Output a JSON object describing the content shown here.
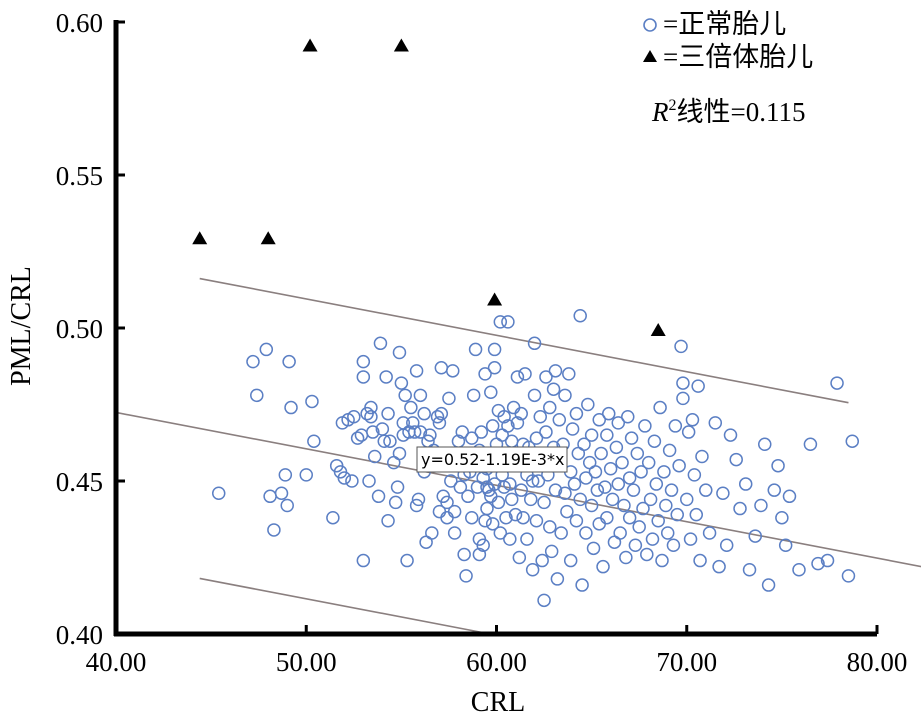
{
  "chart_data": {
    "type": "scatter",
    "xlabel": "CRL",
    "ylabel": "PML/CRL",
    "xlim": [
      40,
      80
    ],
    "ylim": [
      0.4,
      0.6
    ],
    "x_ticks": [
      "40.00",
      "50.00",
      "60.00",
      "70.00",
      "80.00"
    ],
    "y_ticks": [
      "0.40",
      "0.45",
      "0.50",
      "0.55",
      "0.60"
    ],
    "legend": {
      "placement": "top-right",
      "normal_label": "=正常胎儿",
      "trisomy_label": "=三倍体胎儿",
      "r2_prefix": "R",
      "r2_sup": "2",
      "r2_label": "线性=0.115"
    },
    "regression": {
      "equation": "y=0.52-1.19E-3*x",
      "intercept": 0.52,
      "slope": -0.00119,
      "band_offset": 0.049
    },
    "colors": {
      "normal": "#5b7fc4",
      "trisomy": "#000000",
      "line": "#8a7f7f"
    },
    "series": [
      {
        "name": "正常胎儿",
        "marker": "open-circle",
        "points": [
          [
            45.4,
            0.446
          ],
          [
            47.2,
            0.489
          ],
          [
            47.4,
            0.478
          ],
          [
            47.9,
            0.493
          ],
          [
            48.1,
            0.445
          ],
          [
            48.3,
            0.434
          ],
          [
            48.7,
            0.446
          ],
          [
            48.9,
            0.452
          ],
          [
            49.0,
            0.442
          ],
          [
            49.1,
            0.489
          ],
          [
            49.2,
            0.474
          ],
          [
            50.0,
            0.452
          ],
          [
            50.3,
            0.476
          ],
          [
            50.4,
            0.463
          ],
          [
            51.4,
            0.438
          ],
          [
            51.6,
            0.455
          ],
          [
            51.8,
            0.453
          ],
          [
            51.9,
            0.469
          ],
          [
            52.0,
            0.451
          ],
          [
            52.2,
            0.47
          ],
          [
            52.4,
            0.45
          ],
          [
            52.5,
            0.471
          ],
          [
            52.7,
            0.464
          ],
          [
            52.9,
            0.465
          ],
          [
            53.0,
            0.424
          ],
          [
            53.0,
            0.484
          ],
          [
            53.0,
            0.489
          ],
          [
            53.2,
            0.472
          ],
          [
            53.3,
            0.45
          ],
          [
            53.4,
            0.474
          ],
          [
            53.4,
            0.471
          ],
          [
            53.5,
            0.466
          ],
          [
            53.6,
            0.458
          ],
          [
            53.8,
            0.445
          ],
          [
            53.9,
            0.495
          ],
          [
            54.0,
            0.467
          ],
          [
            54.1,
            0.463
          ],
          [
            54.2,
            0.484
          ],
          [
            54.3,
            0.472
          ],
          [
            54.3,
            0.437
          ],
          [
            54.4,
            0.463
          ],
          [
            54.6,
            0.456
          ],
          [
            54.8,
            0.448
          ],
          [
            54.9,
            0.459
          ],
          [
            54.9,
            0.492
          ],
          [
            55.0,
            0.482
          ],
          [
            55.1,
            0.469
          ],
          [
            55.1,
            0.465
          ],
          [
            55.2,
            0.478
          ],
          [
            55.3,
            0.424
          ],
          [
            55.4,
            0.466
          ],
          [
            55.5,
            0.474
          ],
          [
            55.6,
            0.469
          ],
          [
            55.7,
            0.466
          ],
          [
            55.8,
            0.486
          ],
          [
            55.8,
            0.442
          ],
          [
            55.9,
            0.444
          ],
          [
            56.0,
            0.478
          ],
          [
            56.0,
            0.466
          ],
          [
            56.2,
            0.472
          ],
          [
            56.2,
            0.453
          ],
          [
            56.4,
            0.463
          ],
          [
            56.5,
            0.465
          ],
          [
            56.6,
            0.433
          ],
          [
            56.7,
            0.458
          ],
          [
            56.7,
            0.46
          ],
          [
            56.9,
            0.471
          ],
          [
            57.0,
            0.469
          ],
          [
            57.0,
            0.44
          ],
          [
            57.1,
            0.487
          ],
          [
            57.1,
            0.472
          ],
          [
            57.2,
            0.445
          ],
          [
            57.3,
            0.458
          ],
          [
            57.4,
            0.438
          ],
          [
            57.4,
            0.443
          ],
          [
            57.5,
            0.477
          ],
          [
            57.6,
            0.45
          ],
          [
            57.7,
            0.486
          ],
          [
            57.8,
            0.44
          ],
          [
            57.8,
            0.433
          ],
          [
            58.0,
            0.463
          ],
          [
            58.1,
            0.459
          ],
          [
            58.1,
            0.448
          ],
          [
            58.2,
            0.466
          ],
          [
            58.3,
            0.426
          ],
          [
            58.3,
            0.452
          ],
          [
            58.4,
            0.419
          ],
          [
            58.5,
            0.445
          ],
          [
            58.6,
            0.453
          ],
          [
            58.7,
            0.464
          ],
          [
            58.7,
            0.438
          ],
          [
            58.8,
            0.478
          ],
          [
            58.9,
            0.493
          ],
          [
            58.9,
            0.459
          ],
          [
            59.0,
            0.448
          ],
          [
            59.1,
            0.431
          ],
          [
            59.1,
            0.426
          ],
          [
            59.1,
            0.46
          ],
          [
            59.2,
            0.466
          ],
          [
            59.3,
            0.451
          ],
          [
            59.3,
            0.429
          ],
          [
            59.4,
            0.485
          ],
          [
            59.4,
            0.437
          ],
          [
            59.5,
            0.441
          ],
          [
            59.5,
            0.454
          ],
          [
            59.5,
            0.448
          ],
          [
            59.6,
            0.447
          ],
          [
            59.7,
            0.479
          ],
          [
            59.7,
            0.445
          ],
          [
            59.8,
            0.436
          ],
          [
            59.8,
            0.468
          ],
          [
            59.9,
            0.449
          ],
          [
            59.9,
            0.487
          ],
          [
            59.9,
            0.493
          ],
          [
            60.0,
            0.455
          ],
          [
            60.0,
            0.462
          ],
          [
            60.1,
            0.473
          ],
          [
            60.1,
            0.443
          ],
          [
            60.2,
            0.502
          ],
          [
            60.2,
            0.433
          ],
          [
            60.3,
            0.465
          ],
          [
            60.3,
            0.452
          ],
          [
            60.4,
            0.448
          ],
          [
            60.4,
            0.471
          ],
          [
            60.5,
            0.438
          ],
          [
            60.5,
            0.459
          ],
          [
            60.6,
            0.502
          ],
          [
            60.6,
            0.468
          ],
          [
            60.7,
            0.449
          ],
          [
            60.7,
            0.431
          ],
          [
            60.8,
            0.463
          ],
          [
            60.8,
            0.444
          ],
          [
            60.9,
            0.474
          ],
          [
            60.9,
            0.456
          ],
          [
            61.0,
            0.439
          ],
          [
            61.1,
            0.469
          ],
          [
            61.1,
            0.484
          ],
          [
            61.2,
            0.425
          ],
          [
            61.2,
            0.458
          ],
          [
            61.3,
            0.447
          ],
          [
            61.3,
            0.472
          ],
          [
            61.4,
            0.438
          ],
          [
            61.4,
            0.462
          ],
          [
            61.5,
            0.485
          ],
          [
            61.6,
            0.452
          ],
          [
            61.6,
            0.431
          ],
          [
            61.7,
            0.461
          ],
          [
            61.8,
            0.444
          ],
          [
            61.9,
            0.421
          ],
          [
            61.9,
            0.455
          ],
          [
            62.0,
            0.495
          ],
          [
            62.0,
            0.478
          ],
          [
            62.1,
            0.464
          ],
          [
            62.1,
            0.437
          ],
          [
            62.2,
            0.45
          ],
          [
            62.3,
            0.471
          ],
          [
            62.4,
            0.424
          ],
          [
            62.4,
            0.458
          ],
          [
            62.5,
            0.443
          ],
          [
            62.5,
            0.411
          ],
          [
            62.6,
            0.484
          ],
          [
            62.6,
            0.466
          ],
          [
            62.7,
            0.452
          ],
          [
            62.8,
            0.435
          ],
          [
            62.8,
            0.474
          ],
          [
            62.9,
            0.427
          ],
          [
            63.0,
            0.48
          ],
          [
            63.0,
            0.461
          ],
          [
            63.1,
            0.447
          ],
          [
            63.1,
            0.486
          ],
          [
            63.2,
            0.418
          ],
          [
            63.3,
            0.47
          ],
          [
            63.3,
            0.455
          ],
          [
            63.4,
            0.433
          ],
          [
            63.5,
            0.462
          ],
          [
            63.6,
            0.446
          ],
          [
            63.6,
            0.478
          ],
          [
            63.7,
            0.44
          ],
          [
            63.8,
            0.485
          ],
          [
            63.9,
            0.453
          ],
          [
            63.9,
            0.424
          ],
          [
            64.0,
            0.467
          ],
          [
            64.1,
            0.449
          ],
          [
            64.2,
            0.437
          ],
          [
            64.2,
            0.472
          ],
          [
            64.3,
            0.459
          ],
          [
            64.4,
            0.504
          ],
          [
            64.4,
            0.444
          ],
          [
            64.5,
            0.416
          ],
          [
            64.6,
            0.462
          ],
          [
            64.7,
            0.451
          ],
          [
            64.7,
            0.433
          ],
          [
            64.8,
            0.475
          ],
          [
            64.9,
            0.456
          ],
          [
            65.0,
            0.442
          ],
          [
            65.0,
            0.465
          ],
          [
            65.1,
            0.428
          ],
          [
            65.2,
            0.453
          ],
          [
            65.3,
            0.447
          ],
          [
            65.4,
            0.47
          ],
          [
            65.4,
            0.436
          ],
          [
            65.5,
            0.459
          ],
          [
            65.6,
            0.422
          ],
          [
            65.7,
            0.448
          ],
          [
            65.8,
            0.465
          ],
          [
            65.8,
            0.438
          ],
          [
            65.9,
            0.472
          ],
          [
            66.0,
            0.454
          ],
          [
            66.1,
            0.444
          ],
          [
            66.2,
            0.43
          ],
          [
            66.3,
            0.461
          ],
          [
            66.4,
            0.449
          ],
          [
            66.4,
            0.469
          ],
          [
            66.5,
            0.433
          ],
          [
            66.6,
            0.456
          ],
          [
            66.7,
            0.442
          ],
          [
            66.8,
            0.425
          ],
          [
            66.9,
            0.471
          ],
          [
            67.0,
            0.451
          ],
          [
            67.0,
            0.438
          ],
          [
            67.1,
            0.464
          ],
          [
            67.2,
            0.447
          ],
          [
            67.3,
            0.429
          ],
          [
            67.4,
            0.459
          ],
          [
            67.5,
            0.435
          ],
          [
            67.6,
            0.453
          ],
          [
            67.7,
            0.441
          ],
          [
            67.8,
            0.468
          ],
          [
            67.9,
            0.426
          ],
          [
            68.0,
            0.456
          ],
          [
            68.1,
            0.444
          ],
          [
            68.2,
            0.431
          ],
          [
            68.3,
            0.463
          ],
          [
            68.4,
            0.449
          ],
          [
            68.5,
            0.437
          ],
          [
            68.6,
            0.474
          ],
          [
            68.7,
            0.424
          ],
          [
            68.8,
            0.453
          ],
          [
            68.9,
            0.442
          ],
          [
            69.0,
            0.433
          ],
          [
            69.1,
            0.46
          ],
          [
            69.2,
            0.447
          ],
          [
            69.3,
            0.429
          ],
          [
            69.4,
            0.468
          ],
          [
            69.5,
            0.439
          ],
          [
            69.6,
            0.455
          ],
          [
            69.7,
            0.494
          ],
          [
            69.8,
            0.482
          ],
          [
            69.8,
            0.477
          ],
          [
            70.0,
            0.444
          ],
          [
            70.1,
            0.466
          ],
          [
            70.2,
            0.431
          ],
          [
            70.3,
            0.47
          ],
          [
            70.4,
            0.452
          ],
          [
            70.5,
            0.439
          ],
          [
            70.6,
            0.481
          ],
          [
            70.7,
            0.424
          ],
          [
            70.8,
            0.458
          ],
          [
            71.0,
            0.447
          ],
          [
            71.2,
            0.433
          ],
          [
            71.5,
            0.469
          ],
          [
            71.7,
            0.422
          ],
          [
            71.9,
            0.446
          ],
          [
            72.1,
            0.429
          ],
          [
            72.3,
            0.465
          ],
          [
            72.6,
            0.457
          ],
          [
            72.8,
            0.441
          ],
          [
            73.1,
            0.449
          ],
          [
            73.3,
            0.421
          ],
          [
            73.6,
            0.432
          ],
          [
            73.9,
            0.442
          ],
          [
            74.1,
            0.462
          ],
          [
            74.3,
            0.416
          ],
          [
            74.6,
            0.447
          ],
          [
            74.8,
            0.455
          ],
          [
            75.0,
            0.438
          ],
          [
            75.2,
            0.429
          ],
          [
            75.4,
            0.445
          ],
          [
            75.9,
            0.421
          ],
          [
            76.5,
            0.462
          ],
          [
            76.9,
            0.423
          ],
          [
            77.4,
            0.424
          ],
          [
            77.9,
            0.482
          ],
          [
            78.5,
            0.419
          ],
          [
            78.7,
            0.463
          ],
          [
            61.9,
            0.45
          ],
          [
            56.3,
            0.43
          ],
          [
            54.7,
            0.443
          ]
        ]
      },
      {
        "name": "三倍体胎儿",
        "marker": "filled-triangle",
        "points": [
          [
            44.4,
            0.529
          ],
          [
            48.0,
            0.529
          ],
          [
            50.2,
            0.592
          ],
          [
            55.0,
            0.592
          ],
          [
            59.9,
            0.509
          ],
          [
            68.5,
            0.499
          ]
        ]
      }
    ]
  }
}
